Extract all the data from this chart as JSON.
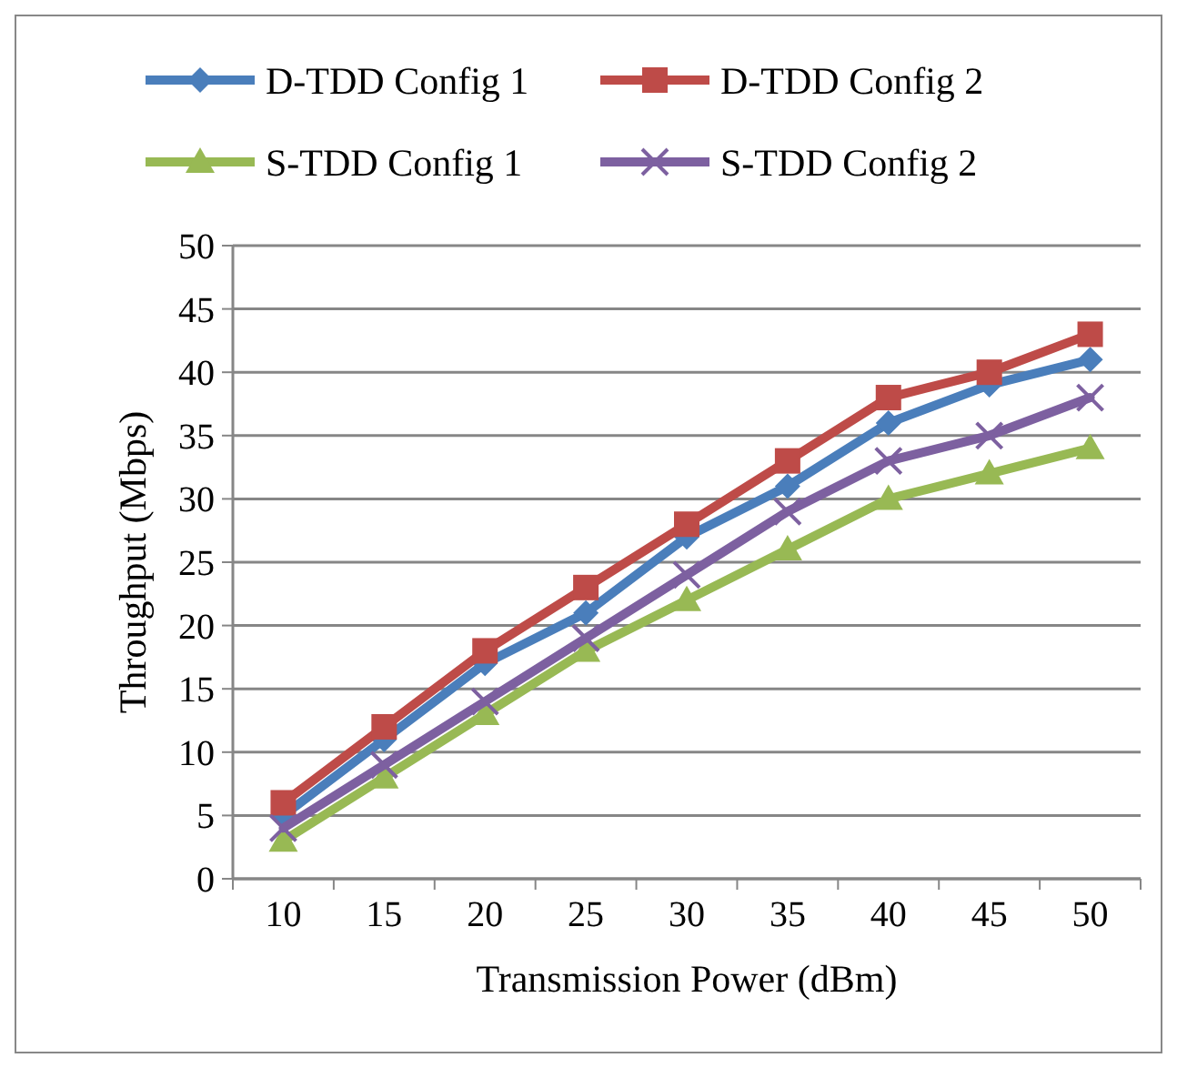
{
  "chart_data": {
    "type": "line",
    "xlabel": "Transmission Power (dBm)",
    "ylabel": "Throughput (Mbps)",
    "categories": [
      "10",
      "15",
      "20",
      "25",
      "30",
      "35",
      "40",
      "45",
      "50"
    ],
    "series": [
      {
        "name": "D-TDD Config 1",
        "color": "#4a7ebb",
        "marker": "diamond",
        "values": [
          5,
          11,
          17,
          21,
          27,
          31,
          36,
          39,
          41
        ]
      },
      {
        "name": "D-TDD Config 2",
        "color": "#be4b48",
        "marker": "square",
        "values": [
          6,
          12,
          18,
          23,
          28,
          33,
          38,
          40,
          43
        ]
      },
      {
        "name": "S-TDD Config 1",
        "color": "#98b954",
        "marker": "triangle",
        "values": [
          3,
          8,
          13,
          18,
          22,
          26,
          30,
          32,
          34
        ]
      },
      {
        "name": "S-TDD Config 2",
        "color": "#7d60a0",
        "marker": "cross",
        "values": [
          4,
          9,
          14,
          19,
          24,
          29,
          33,
          35,
          38
        ]
      }
    ],
    "ylim": [
      0,
      50
    ],
    "yticks": [
      0,
      5,
      10,
      15,
      20,
      25,
      30,
      35,
      40,
      45,
      50
    ],
    "grid": "y",
    "legend": "top"
  }
}
